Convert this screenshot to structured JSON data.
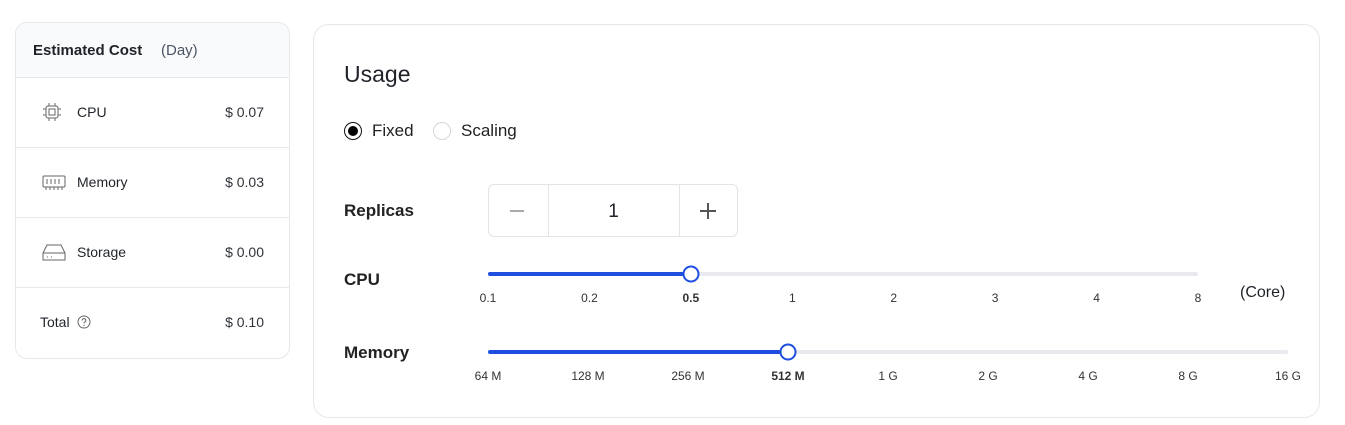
{
  "cost": {
    "title": "Estimated Cost",
    "period": "(Day)",
    "items": [
      {
        "label": "CPU",
        "value": "$ 0.07"
      },
      {
        "label": "Memory",
        "value": "$ 0.03"
      },
      {
        "label": "Storage",
        "value": "$ 0.00"
      }
    ],
    "total": {
      "label": "Total",
      "value": "$ 0.10"
    }
  },
  "usage": {
    "title": "Usage",
    "modes": [
      "Fixed",
      "Scaling"
    ],
    "selected_mode": 0,
    "replicas": {
      "label": "Replicas",
      "value": 1
    },
    "cpu": {
      "label": "CPU",
      "ticks": [
        "0.1",
        "0.2",
        "0.5",
        "1",
        "2",
        "3",
        "4",
        "8"
      ],
      "selected": 2,
      "unit": "(Core)"
    },
    "memory": {
      "label": "Memory",
      "ticks": [
        "64 M",
        "128 M",
        "256 M",
        "512 M",
        "1 G",
        "2 G",
        "4 G",
        "8 G",
        "16 G"
      ],
      "selected": 3
    }
  }
}
